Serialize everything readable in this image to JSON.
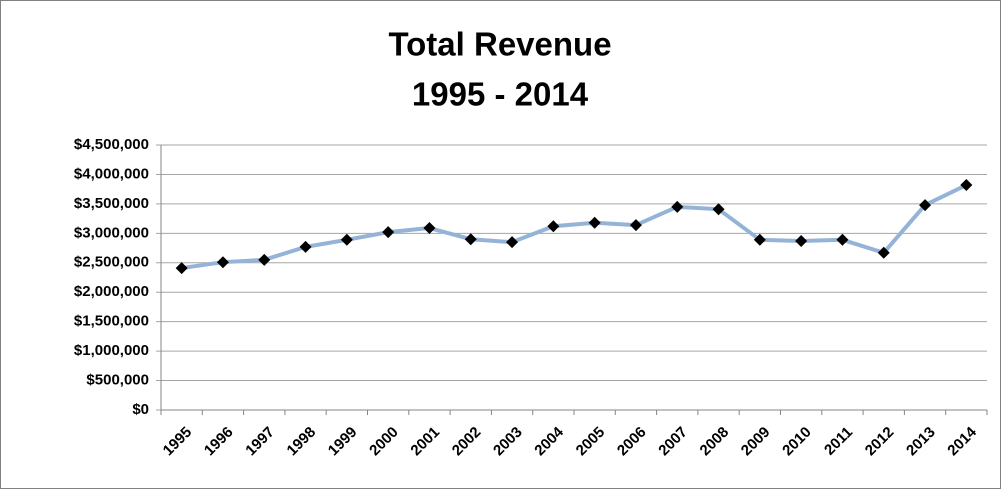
{
  "chart_data": {
    "type": "line",
    "title": "Total Revenue",
    "subtitle": "1995 - 2014",
    "categories": [
      "1995",
      "1996",
      "1997",
      "1998",
      "1999",
      "2000",
      "2001",
      "2002",
      "2003",
      "2004",
      "2005",
      "2006",
      "2007",
      "2008",
      "2009",
      "2010",
      "2011",
      "2012",
      "2013",
      "2014"
    ],
    "series": [
      {
        "name": "Total Revenue",
        "color": "#95b3d7",
        "marker_color": "#000000",
        "values": [
          2410000,
          2510000,
          2550000,
          2770000,
          2890000,
          3020000,
          3090000,
          2900000,
          2850000,
          3120000,
          3180000,
          3140000,
          3450000,
          3410000,
          2890000,
          2870000,
          2890000,
          2670000,
          3480000,
          3820000
        ]
      }
    ],
    "ylim": [
      0,
      4500000
    ],
    "yticks": [
      {
        "value": 0,
        "label": "$0"
      },
      {
        "value": 500000,
        "label": "$500,000"
      },
      {
        "value": 1000000,
        "label": "$1,000,000"
      },
      {
        "value": 1500000,
        "label": "$1,500,000"
      },
      {
        "value": 2000000,
        "label": "$2,000,000"
      },
      {
        "value": 2500000,
        "label": "$2,500,000"
      },
      {
        "value": 3000000,
        "label": "$3,000,000"
      },
      {
        "value": 3500000,
        "label": "$3,500,000"
      },
      {
        "value": 4000000,
        "label": "$4,000,000"
      },
      {
        "value": 4500000,
        "label": "$4,500,000"
      }
    ],
    "grid": true
  }
}
